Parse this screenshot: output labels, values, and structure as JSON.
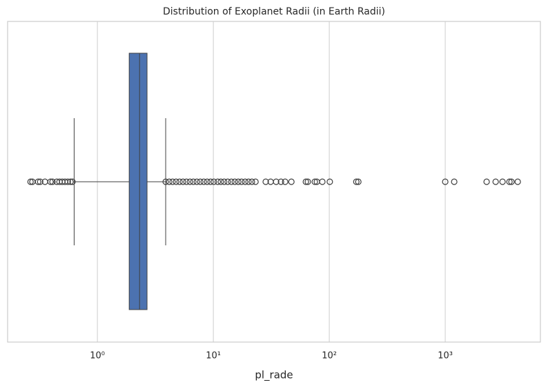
{
  "chart_data": {
    "type": "box",
    "title": "Distribution of Exoplanet Radii (in Earth Radii)",
    "xlabel": "pl_rade",
    "xlim": [
      0.168,
      6620
    ],
    "xscale": "log",
    "grid": true,
    "color": "#4c72b0",
    "xticks": [
      {
        "value": 1,
        "label": "10⁰"
      },
      {
        "value": 10,
        "label": "10¹"
      },
      {
        "value": 100,
        "label": "10²"
      },
      {
        "value": 1000,
        "label": "10³"
      }
    ],
    "whisker_low": 0.63,
    "q1": 1.88,
    "median": 2.31,
    "q3": 2.68,
    "whisker_high": 3.88,
    "outliers": [
      0.265,
      0.275,
      0.308,
      0.321,
      0.353,
      0.394,
      0.41,
      0.446,
      0.471,
      0.497,
      0.525,
      0.555,
      0.586,
      0.61,
      3.88,
      4.16,
      4.45,
      4.77,
      5.11,
      5.47,
      5.86,
      6.28,
      6.72,
      7.2,
      7.71,
      8.26,
      8.84,
      9.46,
      10.1,
      10.9,
      11.6,
      12.4,
      13.3,
      14.3,
      15.3,
      16.4,
      17.5,
      18.8,
      20.1,
      21.5,
      23.1,
      28.3,
      31.2,
      34.8,
      38.3,
      41.6,
      47.1,
      62.8,
      65.3,
      75.0,
      78.1,
      87.1,
      101,
      171,
      178,
      1000,
      1195,
      2275,
      2722,
      3120,
      3580,
      3725,
      4220
    ]
  }
}
